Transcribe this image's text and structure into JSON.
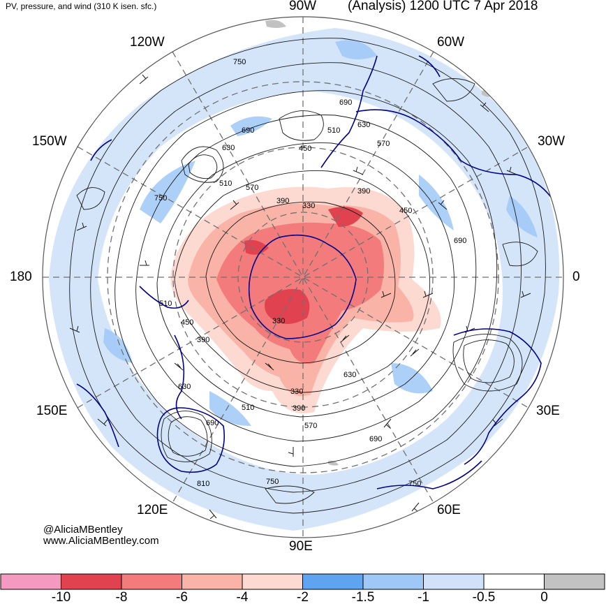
{
  "header": {
    "title_left": "PV, pressure, and wind (310 K isen. sfc.)",
    "title_right": "(Analysis) 1200 UTC 7 Apr 2018"
  },
  "longitude_labels": {
    "lon_90w": "90W",
    "lon_60w": "60W",
    "lon_120w": "120W",
    "lon_30w": "30W",
    "lon_150w": "150W",
    "lon_180": "180",
    "lon_0": "0",
    "lon_150e": "150E",
    "lon_30e": "30E",
    "lon_120e": "120E",
    "lon_60e": "60E",
    "lon_90e": "90E"
  },
  "contour_labels": [
    "750",
    "690",
    "630",
    "510",
    "570",
    "450",
    "390",
    "330",
    "690",
    "510",
    "630",
    "570",
    "390",
    "450",
    "690",
    "750",
    "510",
    "450",
    "390",
    "330",
    "390",
    "510",
    "570",
    "630",
    "690",
    "750",
    "750",
    "810",
    "690",
    "630",
    "330"
  ],
  "credits": {
    "handle": "@AliciaMBentley",
    "website": "www.AliciaMBentley.com"
  },
  "colorbar": {
    "colors": [
      "#f49ac1",
      "#e0434f",
      "#f47b7b",
      "#f9b4a7",
      "#fcd9d1",
      "#5fa4f0",
      "#9fc8f7",
      "#cfe2fa",
      "#ffffff",
      "#c2c2c2"
    ],
    "labels": [
      "-10",
      "-8",
      "-6",
      "-4",
      "-2",
      "-1.5",
      "-1",
      "-0.5",
      "0"
    ]
  }
}
